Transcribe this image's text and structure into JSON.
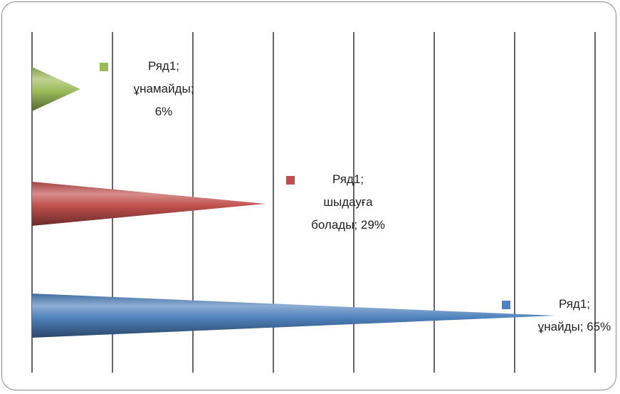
{
  "chart_data": {
    "type": "bar",
    "orientation": "horizontal",
    "bar_shape": "cone",
    "grid": true,
    "categories": [
      "ұнамайды",
      "шыдауға болады",
      "ұнайды"
    ],
    "series": [
      {
        "name": "Ряд1",
        "values": [
          6,
          29,
          65
        ]
      }
    ],
    "colors": [
      "#9bbb59",
      "#c0504d",
      "#4f81bd"
    ],
    "data_labels": [
      [
        "Ряд1;",
        "ұнамайды;",
        "6%"
      ],
      [
        "Ряд1;",
        "шыдауға",
        "болады; 29%"
      ],
      [
        "Ряд1;",
        "ұнайды; 65%"
      ]
    ]
  }
}
